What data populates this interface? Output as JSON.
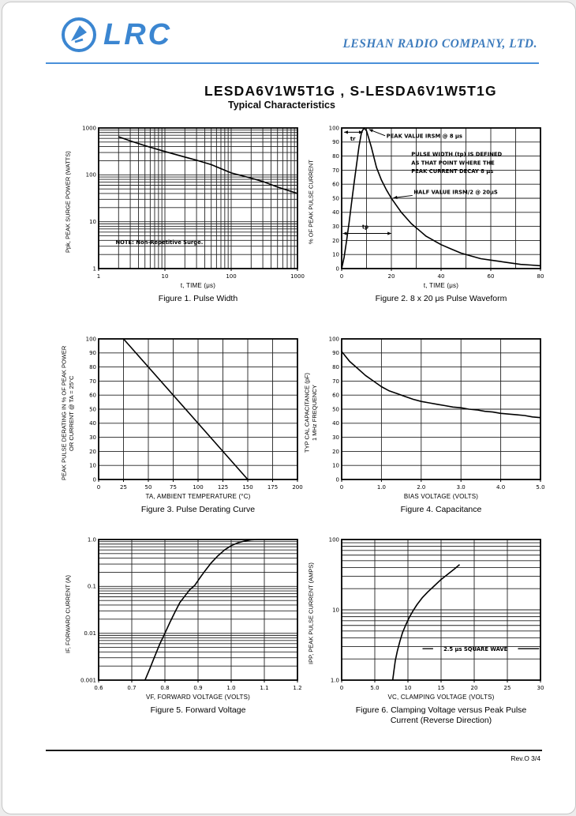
{
  "colors": {
    "brand_blue": "#3b86d1",
    "line_blue": "#4a90d9",
    "chart_ink": "#000000"
  },
  "header": {
    "logo_text": "LRC",
    "company": "LESHAN RADIO COMPANY, LTD."
  },
  "title": {
    "product": "LESDA6V1W5T1G , S-LESDA6V1W5T1G",
    "section": "Typical Characteristics"
  },
  "footer": {
    "rev": "Rev.O  3/4"
  },
  "chart_data": [
    {
      "type": "line",
      "caption": "Figure 1. Pulse Width",
      "xlabel": "t, TIME (μs)",
      "ylabel": "Ppk, PEAK SURGE POWER (WATTS)",
      "xscale": "log",
      "yscale": "log",
      "xlim": [
        1,
        1000
      ],
      "ylim": [
        1,
        1000
      ],
      "xticks": [
        1,
        10,
        100,
        1000
      ],
      "xtick_labels": [
        "1",
        "10",
        "100",
        "1000"
      ],
      "yticks": [
        1,
        10,
        100,
        1000
      ],
      "ytick_labels": [
        "1",
        "10",
        "100",
        "1000"
      ],
      "series": [
        {
          "name": "peak surge power",
          "points": [
            [
              2,
              650
            ],
            [
              3,
              530
            ],
            [
              5,
              420
            ],
            [
              10,
              315
            ],
            [
              20,
              240
            ],
            [
              30,
              205
            ],
            [
              50,
              165
            ],
            [
              100,
              110
            ],
            [
              200,
              85
            ],
            [
              300,
              72
            ],
            [
              500,
              55
            ],
            [
              700,
              47
            ],
            [
              1000,
              40
            ]
          ]
        }
      ],
      "annotations": [
        {
          "text": "NOTE: Non-Repetitive Surge.",
          "x": 1.8,
          "y": 3.35,
          "anchor": "start",
          "bold": true
        }
      ]
    },
    {
      "type": "line",
      "caption": "Figure 2. 8 x 20 μs Pulse Waveform",
      "xlabel": "t, TIME (μs)",
      "ylabel": "% OF PEAK PULSE CURRENT",
      "xscale": "linear",
      "yscale": "linear",
      "xlim": [
        0,
        80
      ],
      "ylim": [
        0,
        100
      ],
      "xgrid": 10,
      "ygrid": 10,
      "xticks": [
        0,
        20,
        40,
        60,
        80
      ],
      "xtick_labels": [
        "0",
        "20",
        "40",
        "60",
        "80"
      ],
      "yticks": [
        0,
        10,
        20,
        30,
        40,
        50,
        60,
        70,
        80,
        90,
        100
      ],
      "ytick_labels": [
        "0",
        "10",
        "20",
        "30",
        "40",
        "50",
        "60",
        "70",
        "80",
        "90",
        "100"
      ],
      "series": [
        {
          "name": "pulse waveform",
          "points": [
            [
              0,
              0
            ],
            [
              1,
              8
            ],
            [
              2,
              20
            ],
            [
              3,
              33
            ],
            [
              4,
              47
            ],
            [
              5,
              61
            ],
            [
              6,
              74
            ],
            [
              7,
              87
            ],
            [
              8,
              97
            ],
            [
              9,
              100
            ],
            [
              10,
              98
            ],
            [
              11,
              92
            ],
            [
              12,
              86
            ],
            [
              14,
              72
            ],
            [
              16,
              63
            ],
            [
              18,
              56
            ],
            [
              20,
              50
            ],
            [
              22,
              45
            ],
            [
              24,
              40
            ],
            [
              26,
              36
            ],
            [
              28,
              32
            ],
            [
              30,
              29
            ],
            [
              32,
              26
            ],
            [
              34,
              23
            ],
            [
              36,
              21
            ],
            [
              38,
              19
            ],
            [
              40,
              17
            ],
            [
              44,
              14
            ],
            [
              48,
              11
            ],
            [
              52,
              9
            ],
            [
              56,
              7
            ],
            [
              60,
              6
            ],
            [
              64,
              5
            ],
            [
              68,
              4
            ],
            [
              72,
              3
            ],
            [
              76,
              2.5
            ],
            [
              80,
              2
            ]
          ]
        }
      ],
      "annotations": [
        {
          "arrow": [
            1,
            97,
            8.5,
            97
          ],
          "double": true
        },
        {
          "text": "tr",
          "x": 4.5,
          "y": 91,
          "anchor": "middle",
          "bold": true
        },
        {
          "text": "PEAK VALUE IRSM @ 8 μs",
          "x": 18,
          "y": 93,
          "anchor": "start",
          "bold": true
        },
        {
          "arrow": [
            17.5,
            94.5,
            11,
            99
          ]
        },
        {
          "text": "PULSE WIDTH (tp) IS DEFINED",
          "x": 28,
          "y": 80,
          "anchor": "start",
          "bold": true
        },
        {
          "text": "AS THAT POINT WHERE THE",
          "x": 28,
          "y": 74,
          "anchor": "start",
          "bold": true
        },
        {
          "text": "PEAK CURRENT DECAY  8 μs",
          "x": 28,
          "y": 68,
          "anchor": "start",
          "bold": true
        },
        {
          "text": "HALF VALUE IRSM/2 @ 20μS",
          "x": 29,
          "y": 53,
          "anchor": "start",
          "bold": true
        },
        {
          "arrow": [
            28.5,
            52,
            20.8,
            50.3
          ]
        },
        {
          "arrow": [
            0.5,
            25,
            20,
            25
          ],
          "double": true
        },
        {
          "text": "tp",
          "x": 9.5,
          "y": 28.5,
          "anchor": "middle",
          "bold": true
        }
      ]
    },
    {
      "type": "line",
      "caption": "Figure 3. Pulse Derating Curve",
      "xlabel": "TA, AMBIENT TEMPERATURE (°C)",
      "ylabel": "PEAK PULSE DERATING IN % OF PEAK POWER\nOR CURRENT @ TA = 25°C",
      "xscale": "linear",
      "yscale": "linear",
      "xlim": [
        0,
        200
      ],
      "ylim": [
        0,
        100
      ],
      "xgrid": 25,
      "ygrid": 10,
      "xticks": [
        0,
        25,
        50,
        75,
        100,
        125,
        150,
        175,
        200
      ],
      "xtick_labels": [
        "0",
        "25",
        "50",
        "75",
        "100",
        "125",
        "150",
        "175",
        "200"
      ],
      "yticks": [
        0,
        10,
        20,
        30,
        40,
        50,
        60,
        70,
        80,
        90,
        100
      ],
      "ytick_labels": [
        "0",
        "10",
        "20",
        "30",
        "40",
        "50",
        "60",
        "70",
        "80",
        "90",
        "100"
      ],
      "series": [
        {
          "name": "derating",
          "points": [
            [
              25,
              100
            ],
            [
              150,
              0
            ]
          ]
        }
      ],
      "annotations": []
    },
    {
      "type": "line",
      "caption": "Figure 4. Capacitance",
      "xlabel": "BIAS VOLTAGE (VOLTS)",
      "ylabel": "TYP CAL CAPACITANCE (pF)\n1 MHz FREQUENCY",
      "xscale": "linear",
      "yscale": "linear",
      "xlim": [
        0,
        5
      ],
      "ylim": [
        0,
        100
      ],
      "xgrid": 1,
      "ygrid": 10,
      "xticks": [
        0,
        1,
        2,
        3,
        4,
        5
      ],
      "xtick_labels": [
        "0",
        "1.0",
        "2.0",
        "3.0",
        "4.0",
        "5.0"
      ],
      "yticks": [
        0,
        10,
        20,
        30,
        40,
        50,
        60,
        70,
        80,
        90,
        100
      ],
      "ytick_labels": [
        "0",
        "10",
        "20",
        "30",
        "40",
        "50",
        "60",
        "70",
        "80",
        "90",
        "100"
      ],
      "series": [
        {
          "name": "capacitance",
          "points": [
            [
              0,
              91
            ],
            [
              0.2,
              84
            ],
            [
              0.4,
              79
            ],
            [
              0.6,
              74
            ],
            [
              0.8,
              70
            ],
            [
              1,
              66
            ],
            [
              1.2,
              63
            ],
            [
              1.4,
              61
            ],
            [
              1.6,
              59
            ],
            [
              1.8,
              57
            ],
            [
              2,
              55.5
            ],
            [
              2.2,
              54.5
            ],
            [
              2.4,
              53.5
            ],
            [
              2.6,
              52.5
            ],
            [
              2.8,
              51.5
            ],
            [
              3,
              51
            ],
            [
              3.2,
              50
            ],
            [
              3.4,
              49.5
            ],
            [
              3.6,
              48.5
            ],
            [
              3.8,
              48
            ],
            [
              4,
              47
            ],
            [
              4.2,
              46.5
            ],
            [
              4.4,
              46
            ],
            [
              4.6,
              45.5
            ],
            [
              4.8,
              44.5
            ],
            [
              5,
              44
            ]
          ]
        }
      ],
      "annotations": []
    },
    {
      "type": "line",
      "caption": "Figure 5. Forward Voltage",
      "xlabel": "VF, FORWARD VOLTAGE (VOLTS)",
      "ylabel": "IF, FORWARD CURRENT (A)",
      "xscale": "linear",
      "yscale": "log",
      "xlim": [
        0.6,
        1.2
      ],
      "ylim": [
        0.001,
        1
      ],
      "xgrid": 0.1,
      "xticks": [
        0.6,
        0.7,
        0.8,
        0.9,
        1,
        1.1,
        1.2
      ],
      "xtick_labels": [
        "0.6",
        "0.7",
        "0.8",
        "0.9",
        "1.0",
        "1.1",
        "1.2"
      ],
      "yticks": [
        1,
        0.1,
        0.01,
        0.001
      ],
      "ytick_labels": [
        "1.0",
        "0.1",
        "0.01",
        "0.001"
      ],
      "series": [
        {
          "name": "forward current",
          "points": [
            [
              0.74,
              0.001
            ],
            [
              0.755,
              0.0018
            ],
            [
              0.77,
              0.0033
            ],
            [
              0.785,
              0.006
            ],
            [
              0.8,
              0.01
            ],
            [
              0.815,
              0.017
            ],
            [
              0.83,
              0.028
            ],
            [
              0.845,
              0.045
            ],
            [
              0.86,
              0.062
            ],
            [
              0.875,
              0.085
            ],
            [
              0.89,
              0.105
            ],
            [
              0.905,
              0.15
            ],
            [
              0.92,
              0.21
            ],
            [
              0.94,
              0.32
            ],
            [
              0.96,
              0.45
            ],
            [
              0.98,
              0.6
            ],
            [
              1,
              0.74
            ],
            [
              1.02,
              0.85
            ],
            [
              1.04,
              0.93
            ],
            [
              1.06,
              0.98
            ],
            [
              1.08,
              1
            ],
            [
              1.2,
              1
            ]
          ]
        }
      ],
      "annotations": []
    },
    {
      "type": "line",
      "caption": "Figure 6. Clamping Voltage versus Peak Pulse Current (Reverse Direction)",
      "xlabel": "VC, CLAMPING VOLTAGE (VOLTS)",
      "ylabel": "IPP, PEAK PULSE CURRENT (AMPS)",
      "xscale": "linear",
      "yscale": "log",
      "xlim": [
        0,
        30
      ],
      "ylim": [
        1,
        100
      ],
      "xgrid": 5,
      "xticks": [
        0,
        5,
        10,
        15,
        20,
        25,
        30
      ],
      "xtick_labels": [
        "0",
        "5.0",
        "10",
        "15",
        "20",
        "25",
        "30"
      ],
      "yticks": [
        1,
        10,
        100
      ],
      "ytick_labels": [
        "1.0",
        "10",
        "100"
      ],
      "series": [
        {
          "name": "peak pulse current",
          "points": [
            [
              7.7,
              1
            ],
            [
              7.9,
              1.4
            ],
            [
              8.1,
              1.9
            ],
            [
              8.4,
              2.6
            ],
            [
              8.8,
              3.6
            ],
            [
              9.2,
              4.8
            ],
            [
              9.7,
              6.2
            ],
            [
              10.2,
              7.8
            ],
            [
              10.8,
              9.8
            ],
            [
              11.4,
              12
            ],
            [
              12.2,
              15
            ],
            [
              13,
              18
            ],
            [
              14,
              22
            ],
            [
              15,
              27
            ],
            [
              16,
              32
            ],
            [
              17,
              38
            ],
            [
              17.8,
              44
            ]
          ]
        }
      ],
      "annotations": [
        {
          "line": [
            12.2,
            2.8,
            13.8,
            2.8
          ]
        },
        {
          "text": "2.5 μs SQUARE WAVE",
          "x": 20.2,
          "y": 2.6,
          "anchor": "middle",
          "bold": true
        },
        {
          "line": [
            26.6,
            2.8,
            29.8,
            2.8
          ]
        }
      ]
    }
  ]
}
